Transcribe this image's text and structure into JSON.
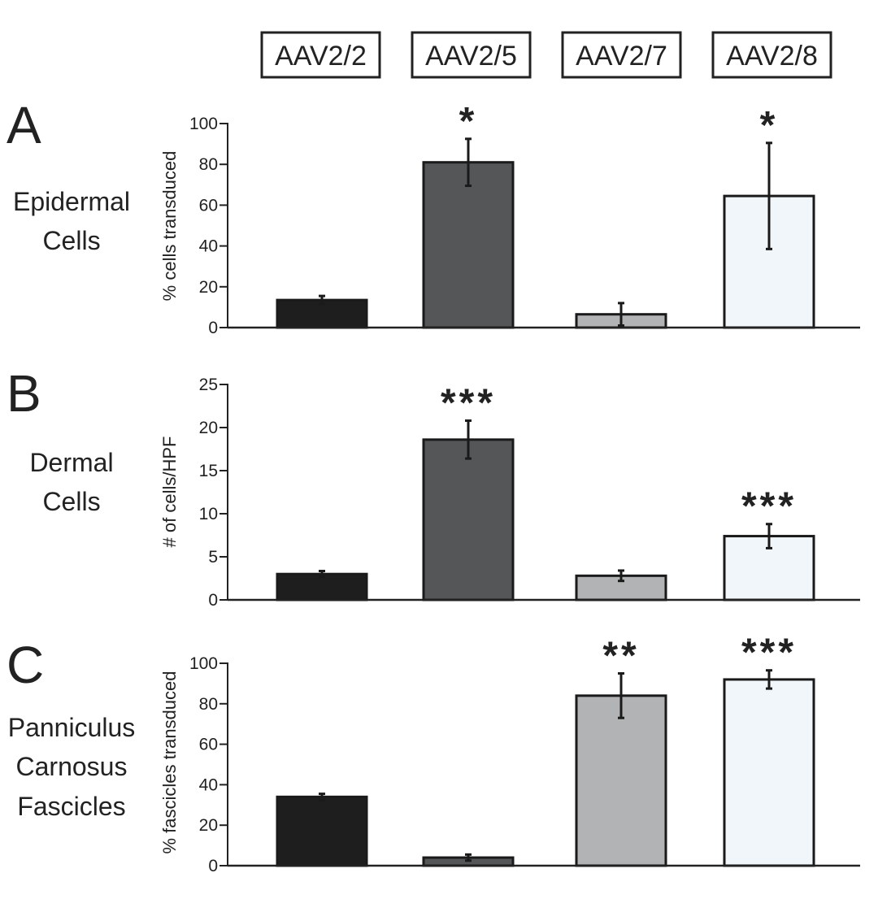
{
  "categories": [
    "AAV2/2",
    "AAV2/5",
    "AAV2/7",
    "AAV2/8"
  ],
  "colors": {
    "AAV2/2": "#1e1e1e",
    "AAV2/5": "#555657",
    "AAV2/7": "#b1b3b4",
    "AAV2/8": "#f1f6fb",
    "axis": "#222222"
  },
  "chart_data": [
    {
      "type": "bar",
      "panel": "A",
      "label_lines": [
        "Epidermal",
        "Cells"
      ],
      "ylabel": "% cells transduced",
      "ylim": [
        0,
        100
      ],
      "yticks": [
        0,
        20,
        40,
        60,
        80,
        100
      ],
      "categories": [
        "AAV2/2",
        "AAV2/5",
        "AAV2/7",
        "AAV2/8"
      ],
      "values": [
        13.5,
        81,
        6.5,
        64.5
      ],
      "errors": [
        2,
        11.5,
        5.5,
        26
      ],
      "significance": [
        "",
        "*",
        "",
        "*"
      ]
    },
    {
      "type": "bar",
      "panel": "B",
      "label_lines": [
        "Dermal",
        "Cells"
      ],
      "ylabel": "# of cells/HPF",
      "ylim": [
        0,
        25
      ],
      "yticks": [
        0,
        5,
        10,
        15,
        20,
        25
      ],
      "categories": [
        "AAV2/2",
        "AAV2/5",
        "AAV2/7",
        "AAV2/8"
      ],
      "values": [
        3,
        18.6,
        2.8,
        7.4
      ],
      "errors": [
        0.35,
        2.2,
        0.6,
        1.4
      ],
      "significance": [
        "",
        "***",
        "",
        "***"
      ]
    },
    {
      "type": "bar",
      "panel": "C",
      "label_lines": [
        "Panniculus",
        "Carnosus",
        "Fascicles"
      ],
      "ylabel": "% fascicles transduced",
      "ylim": [
        0,
        100
      ],
      "yticks": [
        0,
        20,
        40,
        60,
        80,
        100
      ],
      "categories": [
        "AAV2/2",
        "AAV2/5",
        "AAV2/7",
        "AAV2/8"
      ],
      "values": [
        34,
        4,
        84,
        92
      ],
      "errors": [
        1.5,
        1.5,
        11,
        4.5
      ],
      "significance": [
        "",
        "",
        "**",
        "***"
      ]
    }
  ]
}
